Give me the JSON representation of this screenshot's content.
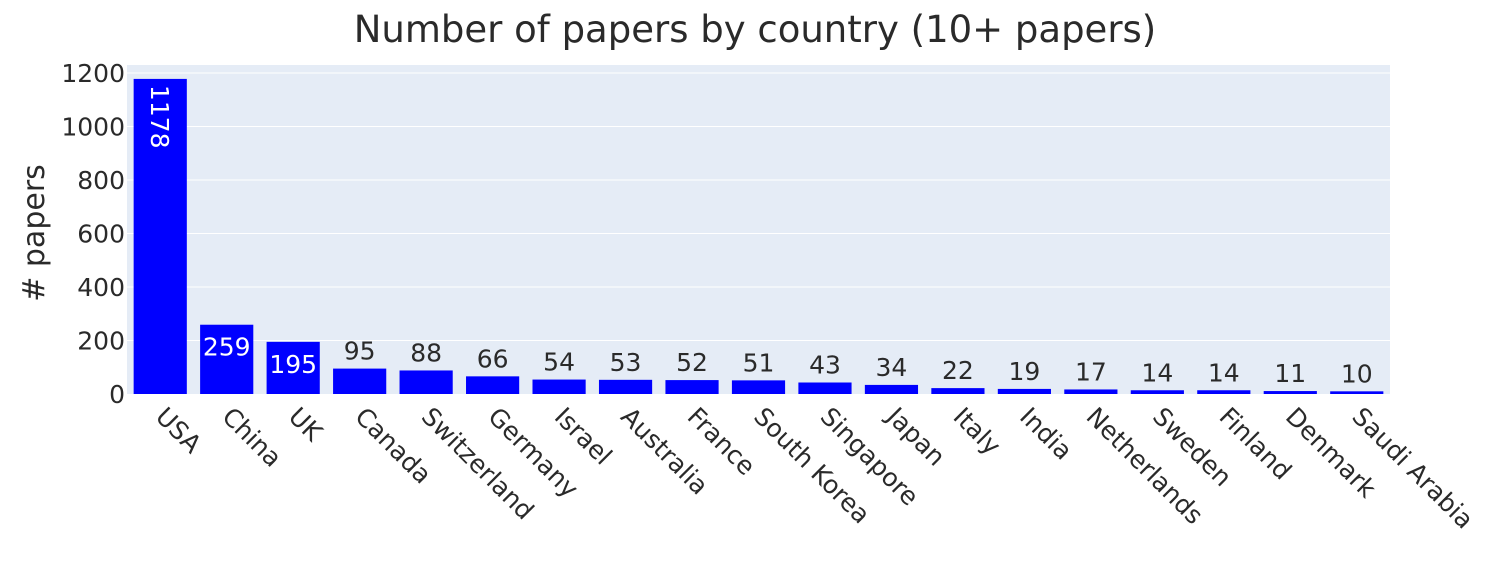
{
  "chart_data": {
    "type": "bar",
    "title": "Number of papers by country (10+ papers)",
    "xlabel": "",
    "ylabel": "# papers",
    "ylim": [
      0,
      1230
    ],
    "yticks": [
      0,
      200,
      400,
      600,
      800,
      1000,
      1200
    ],
    "grid": true,
    "legend": "none",
    "categories": [
      "USA",
      "China",
      "UK",
      "Canada",
      "Switzerland",
      "Germany",
      "Israel",
      "Australia",
      "France",
      "South Korea",
      "Singapore",
      "Japan",
      "Italy",
      "India",
      "Netherlands",
      "Sweden",
      "Finland",
      "Denmark",
      "Saudi Arabia"
    ],
    "values": [
      1178,
      259,
      195,
      95,
      88,
      66,
      54,
      53,
      52,
      51,
      43,
      34,
      22,
      19,
      17,
      14,
      14,
      11,
      10
    ],
    "colors": {
      "bar": "#0000ff",
      "plot_bg": "#e5ecf6",
      "grid": "#ffffff",
      "text": "#2a2a2a"
    }
  }
}
